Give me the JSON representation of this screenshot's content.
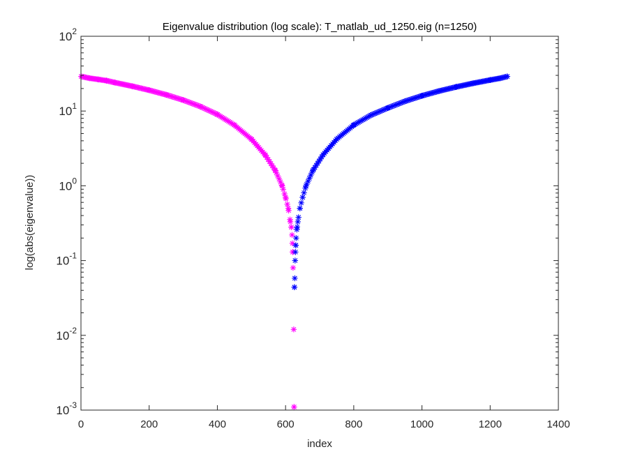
{
  "chart_data": {
    "type": "scatter",
    "title": "Eigenvalue distribution (log scale): T_matlab_ud_1250.eig (n=1250)",
    "xlabel": "index",
    "ylabel": "log(abs(eigenvalue))",
    "xlim": [
      0,
      1400
    ],
    "ylim": [
      0.001,
      100
    ],
    "y_scale": "log",
    "x_ticks": [
      "0",
      "200",
      "400",
      "600",
      "800",
      "1000",
      "1200",
      "1400"
    ],
    "y_ticks": [
      {
        "base": "10",
        "exp": "-3"
      },
      {
        "base": "10",
        "exp": "-2"
      },
      {
        "base": "10",
        "exp": "-1"
      },
      {
        "base": "10",
        "exp": "0"
      },
      {
        "base": "10",
        "exp": "1"
      },
      {
        "base": "10",
        "exp": "2"
      }
    ],
    "marker": "asterisk",
    "grid": false,
    "series": [
      {
        "color": "#ff00ff",
        "points": [
          [
            1,
            29
          ],
          [
            25,
            27.5
          ],
          [
            50,
            26.5
          ],
          [
            75,
            25.5
          ],
          [
            100,
            24
          ],
          [
            150,
            21.5
          ],
          [
            200,
            19
          ],
          [
            250,
            16.5
          ],
          [
            300,
            14
          ],
          [
            350,
            11.5
          ],
          [
            400,
            9
          ],
          [
            450,
            6.5
          ],
          [
            500,
            4.2
          ],
          [
            540,
            2.6
          ],
          [
            570,
            1.6
          ],
          [
            590,
            1.0
          ],
          [
            600,
            0.7
          ],
          [
            608,
            0.5
          ],
          [
            614,
            0.33
          ],
          [
            617,
            0.28
          ],
          [
            619,
            0.22
          ],
          [
            620,
            0.17
          ],
          [
            621,
            0.13
          ],
          [
            622,
            0.08
          ],
          [
            624,
            0.012
          ],
          [
            625,
            0.0011
          ]
        ]
      },
      {
        "color": "#0000ff",
        "points": [
          [
            626,
            0.044
          ],
          [
            627,
            0.058
          ],
          [
            628,
            0.1
          ],
          [
            629,
            0.13
          ],
          [
            630,
            0.16
          ],
          [
            631,
            0.2
          ],
          [
            633,
            0.26
          ],
          [
            636,
            0.33
          ],
          [
            642,
            0.5
          ],
          [
            650,
            0.7
          ],
          [
            660,
            1.0
          ],
          [
            680,
            1.6
          ],
          [
            710,
            2.6
          ],
          [
            750,
            4.2
          ],
          [
            800,
            6.5
          ],
          [
            850,
            8.8
          ],
          [
            900,
            11
          ],
          [
            950,
            13.5
          ],
          [
            1000,
            16
          ],
          [
            1050,
            18.5
          ],
          [
            1100,
            21
          ],
          [
            1150,
            23.5
          ],
          [
            1200,
            26
          ],
          [
            1230,
            27.5
          ],
          [
            1250,
            29
          ]
        ]
      }
    ]
  }
}
